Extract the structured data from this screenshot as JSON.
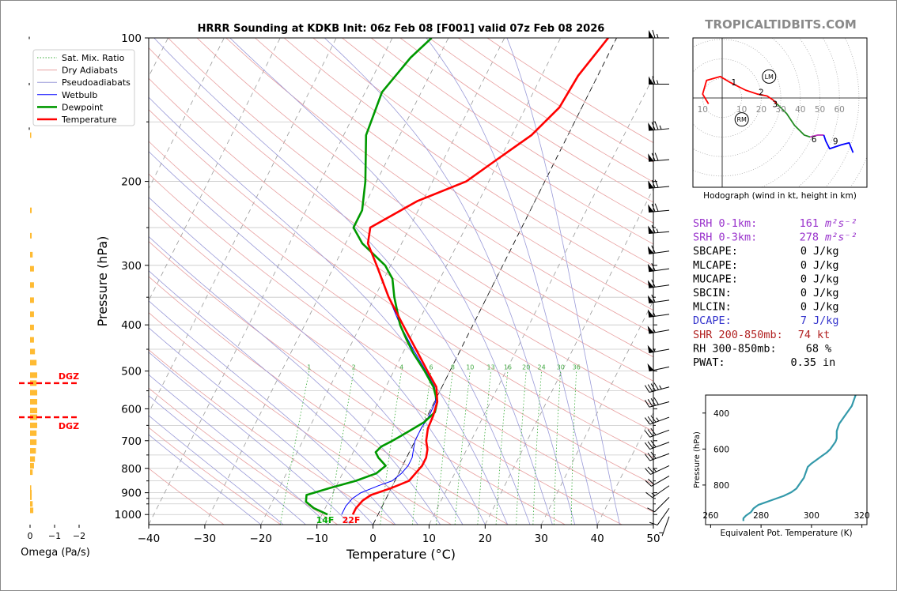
{
  "chart_data": {
    "type": "skew-t",
    "title": "HRRR Sounding at KDKB Init: 06z Feb 08 [F001] valid 07z Feb 08 2026",
    "brand": "TROPICALTIDBITS.COM",
    "xlabel": "Temperature (°C)",
    "ylabel": "Pressure (hPa)",
    "xlim": [
      -40,
      50
    ],
    "ylim": [
      1050,
      100
    ],
    "x_ticks": [
      "−40",
      "−30",
      "−20",
      "−10",
      "0",
      "10",
      "20",
      "30",
      "40",
      "50"
    ],
    "y_ticks": [
      "100",
      "200",
      "300",
      "400",
      "500",
      "600",
      "700",
      "800",
      "900",
      "1000"
    ],
    "legend": {
      "placement": "upper-left",
      "entries": [
        "Sat. Mix. Ratio",
        "Dry Adiabats",
        "Pseudoadiabats",
        "Wetbulb",
        "Dewpoint",
        "Temperature"
      ]
    },
    "mixing_ratio_labels": [
      "1",
      "2",
      "4",
      "6",
      "8",
      "10",
      "13",
      "16",
      "20",
      "24",
      "30",
      "36"
    ],
    "surface_labels": {
      "dewpoint": "14F",
      "temperature": "22F"
    },
    "series": [
      {
        "name": "Temperature",
        "color": "#ff0000",
        "points": [
          [
            1000,
            -4.5
          ],
          [
            970,
            -4.5
          ],
          [
            935,
            -4
          ],
          [
            910,
            -3
          ],
          [
            880,
            0
          ],
          [
            850,
            2.5
          ],
          [
            820,
            3
          ],
          [
            790,
            3.5
          ],
          [
            760,
            3.5
          ],
          [
            730,
            3
          ],
          [
            700,
            2
          ],
          [
            660,
            1.2
          ],
          [
            620,
            1
          ],
          [
            580,
            0.5
          ],
          [
            540,
            -1
          ],
          [
            500,
            -4
          ],
          [
            450,
            -8
          ],
          [
            400,
            -12.5
          ],
          [
            350,
            -17.5
          ],
          [
            300,
            -22.5
          ],
          [
            270,
            -26
          ],
          [
            250,
            -27
          ],
          [
            220,
            -21
          ],
          [
            200,
            -14
          ],
          [
            180,
            -10.5
          ],
          [
            160,
            -6.5
          ],
          [
            140,
            -4
          ],
          [
            120,
            -3.5
          ],
          [
            100,
            -1.5
          ]
        ]
      },
      {
        "name": "Dewpoint",
        "color": "#009900",
        "points": [
          [
            1000,
            -9
          ],
          [
            970,
            -12
          ],
          [
            940,
            -14
          ],
          [
            910,
            -14.5
          ],
          [
            880,
            -11
          ],
          [
            850,
            -7
          ],
          [
            820,
            -4
          ],
          [
            790,
            -3
          ],
          [
            760,
            -5
          ],
          [
            740,
            -6
          ],
          [
            720,
            -5.5
          ],
          [
            700,
            -4
          ],
          [
            670,
            -2
          ],
          [
            640,
            0
          ],
          [
            610,
            1
          ],
          [
            580,
            0.5
          ],
          [
            540,
            -1.5
          ],
          [
            500,
            -4.5
          ],
          [
            460,
            -8
          ],
          [
            430,
            -10.5
          ],
          [
            400,
            -13
          ],
          [
            350,
            -16.5
          ],
          [
            320,
            -18.5
          ],
          [
            300,
            -21
          ],
          [
            270,
            -27
          ],
          [
            250,
            -30
          ],
          [
            230,
            -30
          ],
          [
            200,
            -32
          ],
          [
            160,
            -36
          ],
          [
            130,
            -37
          ],
          [
            110,
            -35
          ],
          [
            100,
            -33
          ]
        ]
      },
      {
        "name": "Wetbulb",
        "color": "#0000ff",
        "points": [
          [
            1000,
            -6.5
          ],
          [
            960,
            -6.5
          ],
          [
            925,
            -6
          ],
          [
            900,
            -5
          ],
          [
            870,
            -2.5
          ],
          [
            850,
            -0.5
          ],
          [
            820,
            0.5
          ],
          [
            790,
            1
          ],
          [
            760,
            1
          ],
          [
            730,
            0.5
          ],
          [
            700,
            0
          ],
          [
            660,
            0
          ],
          [
            620,
            0.3
          ],
          [
            580,
            0.2
          ],
          [
            540,
            -1.3
          ],
          [
            500,
            -4.3
          ],
          [
            450,
            -8.5
          ],
          [
            400,
            -13
          ],
          [
            350,
            -17.5
          ]
        ]
      }
    ],
    "wind_barbs_kt": [
      {
        "p": 100,
        "dir": 270,
        "kt": 65
      },
      {
        "p": 125,
        "dir": 270,
        "kt": 65
      },
      {
        "p": 155,
        "dir": 265,
        "kt": 75
      },
      {
        "p": 180,
        "dir": 265,
        "kt": 70
      },
      {
        "p": 205,
        "dir": 265,
        "kt": 70
      },
      {
        "p": 230,
        "dir": 265,
        "kt": 70
      },
      {
        "p": 255,
        "dir": 265,
        "kt": 65
      },
      {
        "p": 280,
        "dir": 262,
        "kt": 60
      },
      {
        "p": 305,
        "dir": 262,
        "kt": 60
      },
      {
        "p": 330,
        "dir": 262,
        "kt": 60
      },
      {
        "p": 355,
        "dir": 262,
        "kt": 60
      },
      {
        "p": 380,
        "dir": 262,
        "kt": 55
      },
      {
        "p": 410,
        "dir": 260,
        "kt": 55
      },
      {
        "p": 450,
        "dir": 260,
        "kt": 55
      },
      {
        "p": 490,
        "dir": 258,
        "kt": 50
      },
      {
        "p": 540,
        "dir": 255,
        "kt": 45
      },
      {
        "p": 580,
        "dir": 255,
        "kt": 40
      },
      {
        "p": 625,
        "dir": 250,
        "kt": 35
      },
      {
        "p": 665,
        "dir": 250,
        "kt": 30
      },
      {
        "p": 705,
        "dir": 250,
        "kt": 30
      },
      {
        "p": 745,
        "dir": 250,
        "kt": 30
      },
      {
        "p": 790,
        "dir": 245,
        "kt": 25
      },
      {
        "p": 830,
        "dir": 240,
        "kt": 20
      },
      {
        "p": 870,
        "dir": 235,
        "kt": 15
      },
      {
        "p": 920,
        "dir": 225,
        "kt": 10
      },
      {
        "p": 970,
        "dir": 215,
        "kt": 10
      },
      {
        "p": 1010,
        "dir": 200,
        "kt": 5
      }
    ],
    "omega": {
      "xlabel": "Omega (Pa/s)",
      "x_ticks": [
        "0",
        "−1",
        "−2"
      ],
      "dgz_label": "DGZ",
      "dgz_hpa": [
        530,
        625
      ],
      "bars": [
        {
          "p": 160,
          "v": 0.03
        },
        {
          "p": 230,
          "v": 0.05
        },
        {
          "p": 260,
          "v": 0.05
        },
        {
          "p": 285,
          "v": 0.08
        },
        {
          "p": 305,
          "v": 0.12
        },
        {
          "p": 330,
          "v": 0.12
        },
        {
          "p": 355,
          "v": 0.12
        },
        {
          "p": 380,
          "v": 0.12
        },
        {
          "p": 405,
          "v": 0.12
        },
        {
          "p": 430,
          "v": 0.12
        },
        {
          "p": 455,
          "v": 0.15
        },
        {
          "p": 480,
          "v": 0.2
        },
        {
          "p": 510,
          "v": 0.22
        },
        {
          "p": 530,
          "v": 0.2
        },
        {
          "p": 555,
          "v": 0.22
        },
        {
          "p": 580,
          "v": 0.22
        },
        {
          "p": 605,
          "v": 0.22
        },
        {
          "p": 625,
          "v": 0.22
        },
        {
          "p": 650,
          "v": 0.22
        },
        {
          "p": 675,
          "v": 0.2
        },
        {
          "p": 705,
          "v": 0.2
        },
        {
          "p": 735,
          "v": 0.18
        },
        {
          "p": 765,
          "v": 0.15
        },
        {
          "p": 790,
          "v": 0.12
        },
        {
          "p": 815,
          "v": 0.08
        },
        {
          "p": 880,
          "v": 0.03
        },
        {
          "p": 900,
          "v": 0.05
        },
        {
          "p": 920,
          "v": 0.05
        },
        {
          "p": 950,
          "v": 0.08
        },
        {
          "p": 980,
          "v": 0.1
        }
      ]
    },
    "hodograph": {
      "caption": "Hodograph (wind in kt, height in km)",
      "ring_labels_left": [
        "10"
      ],
      "ring_labels_right": [
        "10",
        "20",
        "30",
        "40",
        "50",
        "60"
      ],
      "markers": [
        "LM",
        "RM"
      ],
      "height_labels": [
        "1",
        "2",
        "3",
        "6",
        "9"
      ],
      "segments": [
        {
          "color": "#ff0000",
          "points": [
            [
              -7,
              -3
            ],
            [
              -10,
              2
            ],
            [
              -8,
              9
            ],
            [
              -1,
              11
            ],
            [
              4,
              8
            ],
            [
              8,
              6
            ],
            [
              12,
              4
            ],
            [
              18,
              2
            ],
            [
              23,
              1
            ],
            [
              26,
              -1
            ],
            [
              28,
              -3
            ]
          ]
        },
        {
          "color": "#228b22",
          "points": [
            [
              28,
              -3
            ],
            [
              33,
              -8
            ],
            [
              37,
              -14
            ],
            [
              40,
              -17
            ],
            [
              42,
              -19
            ],
            [
              45,
              -20
            ]
          ]
        },
        {
          "color": "#bb33bb",
          "points": [
            [
              45,
              -20
            ],
            [
              49,
              -19
            ],
            [
              52,
              -19
            ]
          ]
        },
        {
          "color": "#0000ff",
          "points": [
            [
              52,
              -19
            ],
            [
              53,
              -22
            ],
            [
              55,
              -26
            ],
            [
              61,
              -24
            ],
            [
              65,
              -23
            ],
            [
              67,
              -28
            ]
          ]
        }
      ],
      "lm_marker": [
        24,
        11
      ],
      "rm_marker": [
        10,
        -11
      ]
    },
    "indices": [
      {
        "label": "SRH 0-1km:",
        "value": "161",
        "unit": "m²s⁻²",
        "color": "#9932cc"
      },
      {
        "label": "SRH 0-3km:",
        "value": "278",
        "unit": "m²s⁻²",
        "color": "#9932cc"
      },
      {
        "label": "SBCAPE:",
        "value": "0",
        "unit": "J/kg",
        "color": "#000000"
      },
      {
        "label": "MLCAPE:",
        "value": "0",
        "unit": "J/kg",
        "color": "#000000"
      },
      {
        "label": "MUCAPE:",
        "value": "0",
        "unit": "J/kg",
        "color": "#000000"
      },
      {
        "label": "SBCIN:",
        "value": "0",
        "unit": "J/kg",
        "color": "#000000"
      },
      {
        "label": "MLCIN:",
        "value": "0",
        "unit": "J/kg",
        "color": "#000000"
      },
      {
        "label": "DCAPE:",
        "value": "7",
        "unit": "J/kg",
        "color": "#3333cc"
      },
      {
        "label": "SHR 200-850mb:",
        "value": "74",
        "unit": "kt",
        "color": "#b22222"
      },
      {
        "label": "RH 300-850mb:",
        "value": "68",
        "unit": "%",
        "color": "#000000"
      },
      {
        "label": "PWAT:",
        "value": "0.35",
        "unit": "in",
        "color": "#000000"
      }
    ],
    "theta_e": {
      "xlabel": "Equivalent Pot. Temperature (K)",
      "ylabel": "Pressure (hPa)",
      "x_ticks": [
        "260",
        "280",
        "300",
        "320"
      ],
      "y_ticks": [
        "400",
        "600",
        "800"
      ],
      "xlim": [
        258,
        322
      ],
      "ylim": [
        1020,
        300
      ],
      "color": "#3399aa",
      "points": [
        [
          1000,
          273
        ],
        [
          985,
          273
        ],
        [
          970,
          274
        ],
        [
          950,
          276
        ],
        [
          930,
          277
        ],
        [
          910,
          279
        ],
        [
          900,
          281
        ],
        [
          880,
          285
        ],
        [
          860,
          289
        ],
        [
          840,
          292
        ],
        [
          820,
          294
        ],
        [
          800,
          295
        ],
        [
          780,
          296
        ],
        [
          760,
          297
        ],
        [
          740,
          297.5
        ],
        [
          720,
          298
        ],
        [
          700,
          298.5
        ],
        [
          680,
          300
        ],
        [
          660,
          302
        ],
        [
          640,
          304
        ],
        [
          620,
          306
        ],
        [
          600,
          307.5
        ],
        [
          580,
          308.5
        ],
        [
          560,
          309.5
        ],
        [
          540,
          310
        ],
        [
          520,
          310
        ],
        [
          500,
          310
        ],
        [
          480,
          310.5
        ],
        [
          460,
          311
        ],
        [
          440,
          312
        ],
        [
          420,
          313
        ],
        [
          400,
          314
        ],
        [
          380,
          315
        ],
        [
          360,
          316
        ],
        [
          340,
          316.5
        ],
        [
          320,
          317
        ],
        [
          300,
          317.5
        ]
      ]
    }
  }
}
